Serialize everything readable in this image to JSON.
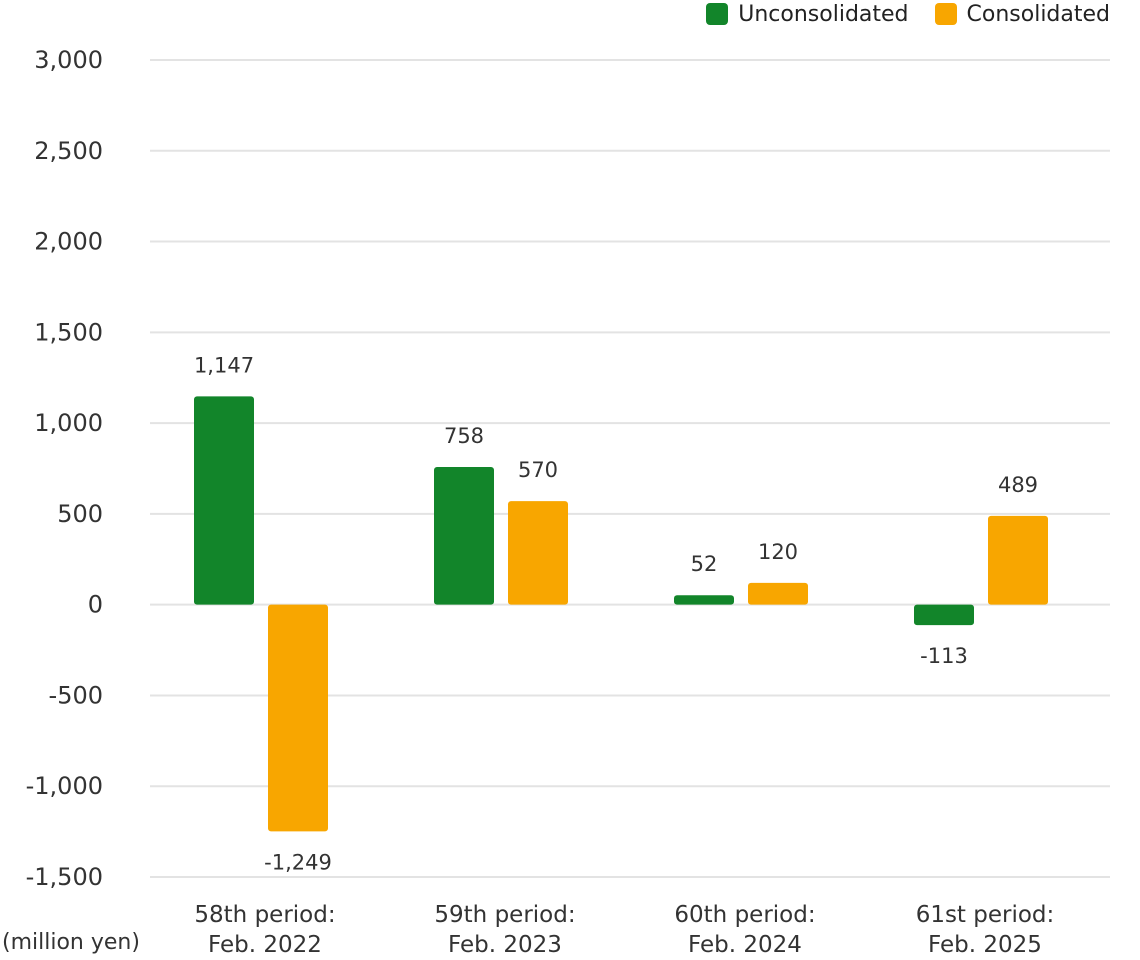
{
  "chart_data": {
    "type": "bar",
    "unit_label": "(million yen)",
    "categories": [
      [
        "58th period:",
        "Feb. 2022"
      ],
      [
        "59th period:",
        "Feb. 2023"
      ],
      [
        "60th period:",
        "Feb. 2024"
      ],
      [
        "61st period:",
        "Feb. 2025"
      ]
    ],
    "series": [
      {
        "name": "Unconsolidated",
        "color": "#12852a",
        "values": [
          1147,
          758,
          52,
          -113
        ],
        "labels": [
          "1,147",
          "758",
          "52",
          "-113"
        ]
      },
      {
        "name": "Consolidated",
        "color": "#f8a600",
        "values": [
          -1249,
          570,
          120,
          489
        ],
        "labels": [
          "-1,249",
          "570",
          "120",
          "489"
        ]
      }
    ],
    "ylim": [
      -1500,
      3000
    ],
    "yticks": [
      3000,
      2500,
      2000,
      1500,
      1000,
      500,
      0,
      -500,
      -1000,
      -1500
    ],
    "ytick_labels": [
      "3,000",
      "2,500",
      "2,000",
      "1,500",
      "1,000",
      "500",
      "0",
      "-500",
      "-1,000",
      "-1,500"
    ],
    "grid": true,
    "legend": "top-right"
  }
}
